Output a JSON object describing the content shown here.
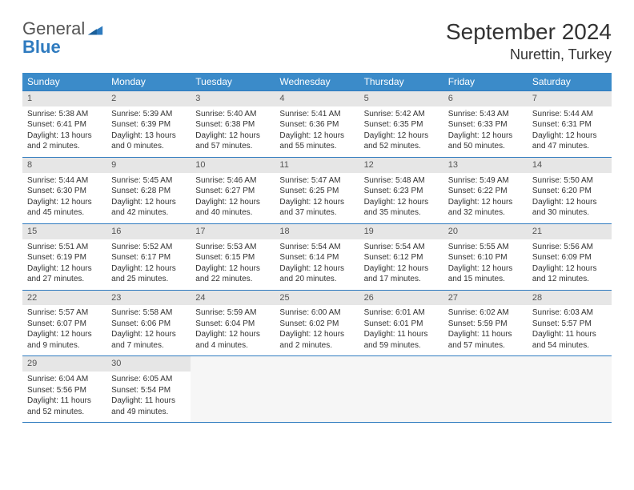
{
  "logo": {
    "word1": "General",
    "word2": "Blue"
  },
  "title": "September 2024",
  "location": "Nurettin, Turkey",
  "colors": {
    "header_bg": "#3b8bc9",
    "rule": "#2f7bbf",
    "daynum_bg": "#e6e6e6",
    "text": "#333333"
  },
  "weekdays": [
    "Sunday",
    "Monday",
    "Tuesday",
    "Wednesday",
    "Thursday",
    "Friday",
    "Saturday"
  ],
  "weeks": [
    [
      {
        "n": "1",
        "sr": "5:38 AM",
        "ss": "6:41 PM",
        "dl": "13 hours and 2 minutes."
      },
      {
        "n": "2",
        "sr": "5:39 AM",
        "ss": "6:39 PM",
        "dl": "13 hours and 0 minutes."
      },
      {
        "n": "3",
        "sr": "5:40 AM",
        "ss": "6:38 PM",
        "dl": "12 hours and 57 minutes."
      },
      {
        "n": "4",
        "sr": "5:41 AM",
        "ss": "6:36 PM",
        "dl": "12 hours and 55 minutes."
      },
      {
        "n": "5",
        "sr": "5:42 AM",
        "ss": "6:35 PM",
        "dl": "12 hours and 52 minutes."
      },
      {
        "n": "6",
        "sr": "5:43 AM",
        "ss": "6:33 PM",
        "dl": "12 hours and 50 minutes."
      },
      {
        "n": "7",
        "sr": "5:44 AM",
        "ss": "6:31 PM",
        "dl": "12 hours and 47 minutes."
      }
    ],
    [
      {
        "n": "8",
        "sr": "5:44 AM",
        "ss": "6:30 PM",
        "dl": "12 hours and 45 minutes."
      },
      {
        "n": "9",
        "sr": "5:45 AM",
        "ss": "6:28 PM",
        "dl": "12 hours and 42 minutes."
      },
      {
        "n": "10",
        "sr": "5:46 AM",
        "ss": "6:27 PM",
        "dl": "12 hours and 40 minutes."
      },
      {
        "n": "11",
        "sr": "5:47 AM",
        "ss": "6:25 PM",
        "dl": "12 hours and 37 minutes."
      },
      {
        "n": "12",
        "sr": "5:48 AM",
        "ss": "6:23 PM",
        "dl": "12 hours and 35 minutes."
      },
      {
        "n": "13",
        "sr": "5:49 AM",
        "ss": "6:22 PM",
        "dl": "12 hours and 32 minutes."
      },
      {
        "n": "14",
        "sr": "5:50 AM",
        "ss": "6:20 PM",
        "dl": "12 hours and 30 minutes."
      }
    ],
    [
      {
        "n": "15",
        "sr": "5:51 AM",
        "ss": "6:19 PM",
        "dl": "12 hours and 27 minutes."
      },
      {
        "n": "16",
        "sr": "5:52 AM",
        "ss": "6:17 PM",
        "dl": "12 hours and 25 minutes."
      },
      {
        "n": "17",
        "sr": "5:53 AM",
        "ss": "6:15 PM",
        "dl": "12 hours and 22 minutes."
      },
      {
        "n": "18",
        "sr": "5:54 AM",
        "ss": "6:14 PM",
        "dl": "12 hours and 20 minutes."
      },
      {
        "n": "19",
        "sr": "5:54 AM",
        "ss": "6:12 PM",
        "dl": "12 hours and 17 minutes."
      },
      {
        "n": "20",
        "sr": "5:55 AM",
        "ss": "6:10 PM",
        "dl": "12 hours and 15 minutes."
      },
      {
        "n": "21",
        "sr": "5:56 AM",
        "ss": "6:09 PM",
        "dl": "12 hours and 12 minutes."
      }
    ],
    [
      {
        "n": "22",
        "sr": "5:57 AM",
        "ss": "6:07 PM",
        "dl": "12 hours and 9 minutes."
      },
      {
        "n": "23",
        "sr": "5:58 AM",
        "ss": "6:06 PM",
        "dl": "12 hours and 7 minutes."
      },
      {
        "n": "24",
        "sr": "5:59 AM",
        "ss": "6:04 PM",
        "dl": "12 hours and 4 minutes."
      },
      {
        "n": "25",
        "sr": "6:00 AM",
        "ss": "6:02 PM",
        "dl": "12 hours and 2 minutes."
      },
      {
        "n": "26",
        "sr": "6:01 AM",
        "ss": "6:01 PM",
        "dl": "11 hours and 59 minutes."
      },
      {
        "n": "27",
        "sr": "6:02 AM",
        "ss": "5:59 PM",
        "dl": "11 hours and 57 minutes."
      },
      {
        "n": "28",
        "sr": "6:03 AM",
        "ss": "5:57 PM",
        "dl": "11 hours and 54 minutes."
      }
    ],
    [
      {
        "n": "29",
        "sr": "6:04 AM",
        "ss": "5:56 PM",
        "dl": "11 hours and 52 minutes."
      },
      {
        "n": "30",
        "sr": "6:05 AM",
        "ss": "5:54 PM",
        "dl": "11 hours and 49 minutes."
      },
      null,
      null,
      null,
      null,
      null
    ]
  ],
  "labels": {
    "sunrise": "Sunrise:",
    "sunset": "Sunset:",
    "daylight": "Daylight:"
  }
}
